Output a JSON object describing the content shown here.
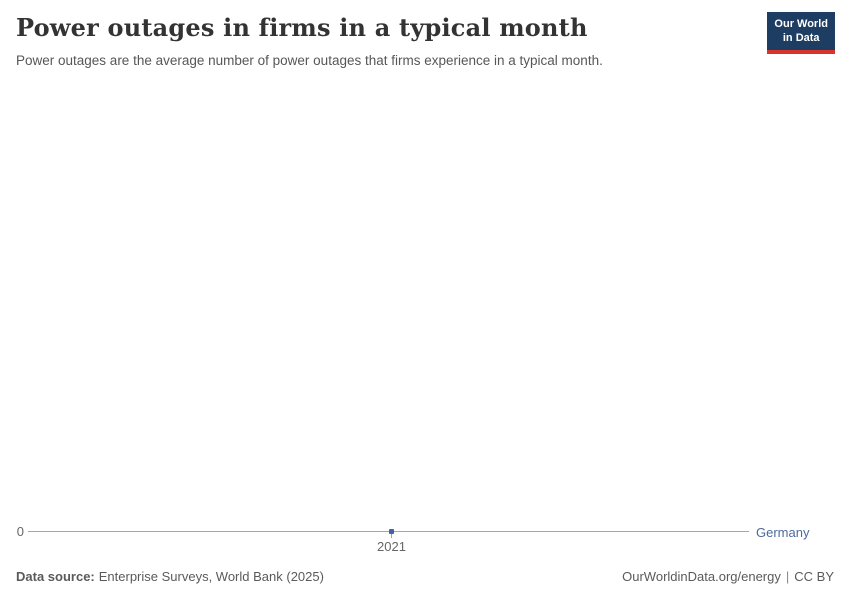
{
  "header": {
    "title": "Power outages in firms in a typical month",
    "subtitle": "Power outages are the average number of power outages that firms experience in a typical month.",
    "logo": {
      "line1": "Our World",
      "line2": "in Data",
      "bg_color": "#1d3d63",
      "bar_color": "#d7342c"
    }
  },
  "chart_data": {
    "type": "line",
    "title": "Power outages in firms in a typical month",
    "subtitle": "Power outages are the average number of power outages that firms experience in a typical month.",
    "x": [
      2021
    ],
    "series": [
      {
        "name": "Germany",
        "color": "#4c6a9c",
        "values": [
          0
        ]
      }
    ],
    "x_tick_labels": [
      "2021"
    ],
    "y_tick_labels": [
      "0"
    ],
    "xlabel": "",
    "ylabel": "",
    "ylim": [
      0,
      null
    ],
    "grid": false,
    "legend_position": "end-of-line-label"
  },
  "axis": {
    "y_zero_label": "0",
    "x_tick_label": "2021",
    "entity_label": "Germany",
    "axis_line_color": "#a6a6a6",
    "point_color": "#4262a8"
  },
  "footer": {
    "source_label": "Data source:",
    "source_text": "Enterprise Surveys, World Bank (2025)",
    "url_text": "OurWorldinData.org/energy",
    "separator": "|",
    "license_text": "CC BY"
  }
}
